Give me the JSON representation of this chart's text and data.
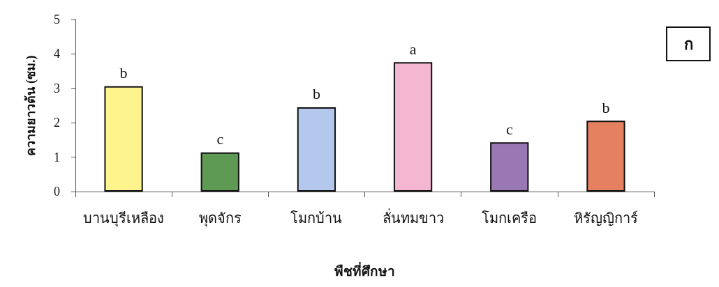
{
  "chart_data": {
    "type": "bar",
    "categories": [
      "บานบุรีเหลือง",
      "พุดจักร",
      "โมกบ้าน",
      "ลั่นทมขาว",
      "โมกเครือ",
      "หิรัญญิการ์"
    ],
    "values": [
      3.06,
      1.14,
      2.45,
      3.76,
      1.43,
      2.06
    ],
    "colors": [
      "#fdf48e",
      "#5f9a55",
      "#b4c8ee",
      "#f5b6d2",
      "#9a78b4",
      "#e58160"
    ],
    "xlabel": "พืชที่ศึกษา",
    "ylabel": "ความยาวต้น (ซม.)",
    "ylim": [
      0,
      5
    ],
    "yticks": [
      0,
      1,
      2,
      3,
      4,
      5
    ],
    "grid": false,
    "annotations": [
      {
        "text": "b",
        "x": "บานบุรีเหลือง",
        "y": 3.06
      },
      {
        "text": "c",
        "x": "พุดจักร",
        "y": 1.14
      },
      {
        "text": "b",
        "x": "โมกบ้าน",
        "y": 2.45
      },
      {
        "text": "a",
        "x": "ลั่นทมขาว",
        "y": 3.76
      },
      {
        "text": "c",
        "x": "โมกเครือ",
        "y": 1.43
      },
      {
        "text": "b",
        "x": "หิรัญญิการ์",
        "y": 2.06
      },
      "ก"
    ]
  }
}
